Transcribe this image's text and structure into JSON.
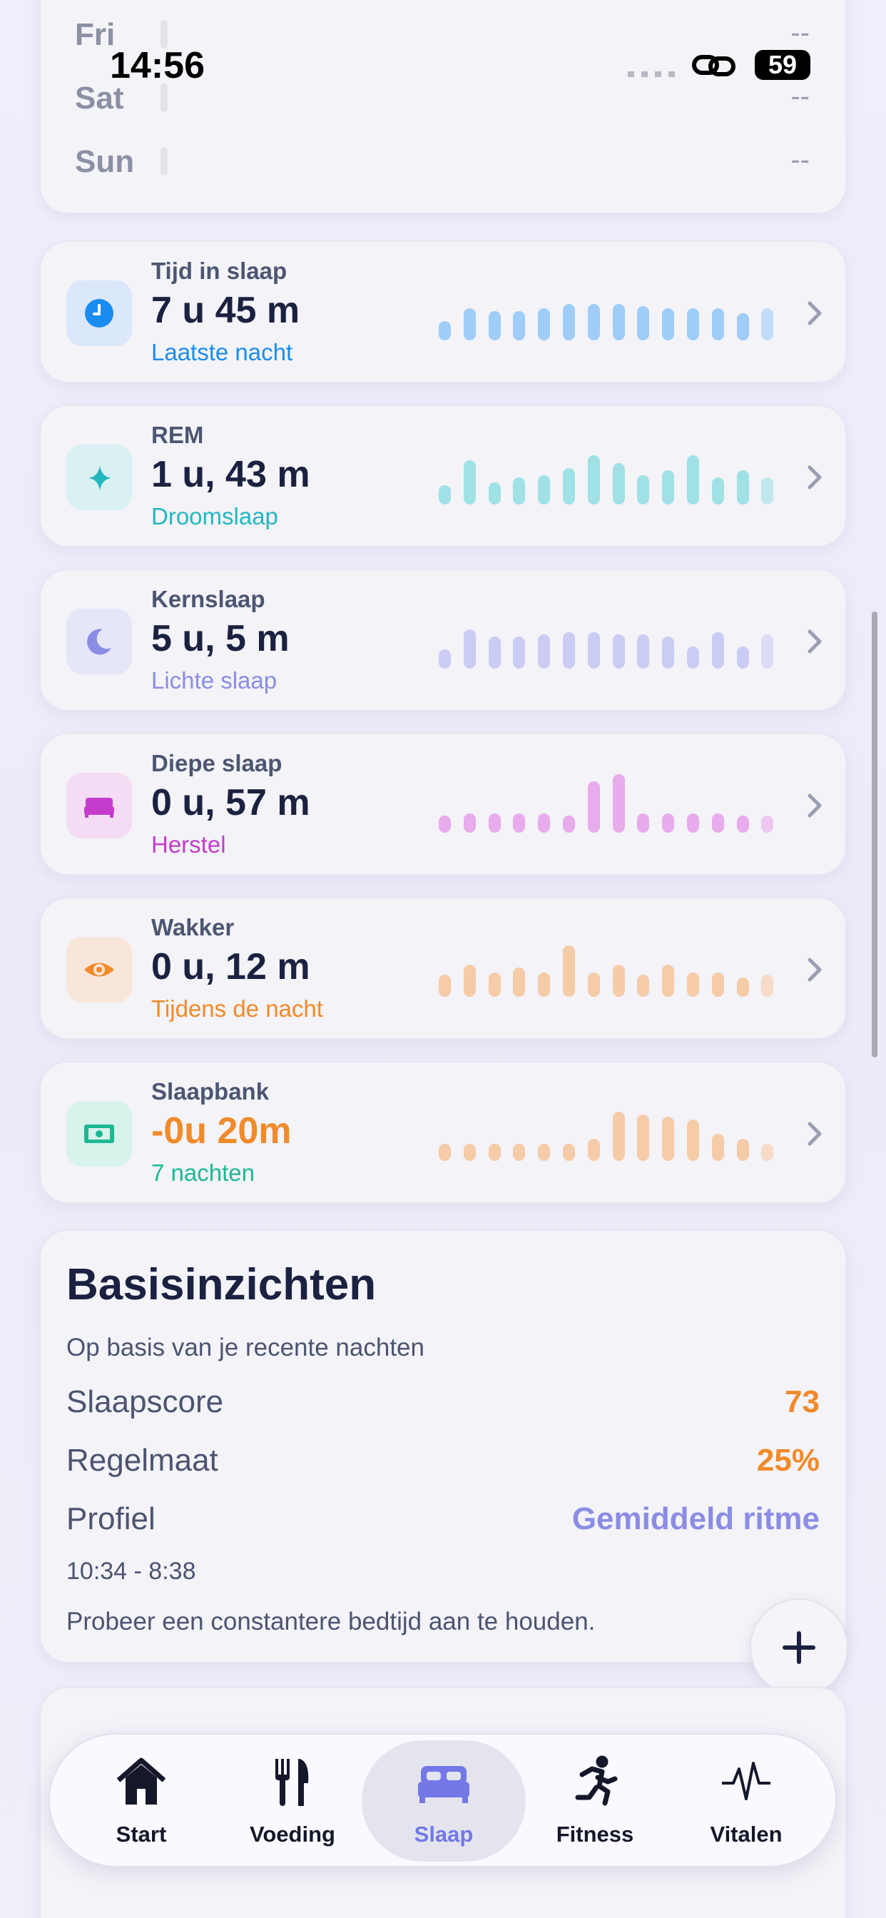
{
  "status_bar": {
    "time": "14:56",
    "battery": "59"
  },
  "week": [
    {
      "day": "Fri",
      "value": "--"
    },
    {
      "day": "Sat",
      "value": "--"
    },
    {
      "day": "Sun",
      "value": "--"
    }
  ],
  "metrics": [
    {
      "title": "Tijd in slaap",
      "value": "7 u 45 m",
      "subtitle": "Laatste nacht",
      "bars": [
        16,
        26,
        24,
        24,
        26,
        30,
        30,
        30,
        28,
        26,
        26,
        26,
        22,
        26
      ]
    },
    {
      "title": "REM",
      "value": "1 u, 43 m",
      "subtitle": "Droomslaap",
      "bars": [
        16,
        36,
        18,
        22,
        24,
        30,
        40,
        34,
        24,
        28,
        40,
        22,
        28,
        22
      ]
    },
    {
      "title": "Kernslaap",
      "value": "5 u, 5 m",
      "subtitle": "Lichte slaap",
      "bars": [
        16,
        32,
        26,
        26,
        28,
        30,
        30,
        28,
        28,
        26,
        18,
        30,
        18,
        28
      ]
    },
    {
      "title": "Diepe slaap",
      "value": "0 u, 57 m",
      "subtitle": "Herstel",
      "bars": [
        14,
        16,
        16,
        16,
        16,
        14,
        42,
        48,
        16,
        16,
        16,
        16,
        14,
        14
      ]
    },
    {
      "title": "Wakker",
      "value": "0 u, 12 m",
      "subtitle": "Tijdens de nacht",
      "bars": [
        18,
        26,
        20,
        24,
        20,
        42,
        20,
        26,
        18,
        26,
        20,
        20,
        16,
        18
      ]
    },
    {
      "title": "Slaapbank",
      "value": "-0u 20m",
      "subtitle": "7 nachten",
      "bars": [
        14,
        14,
        14,
        14,
        14,
        14,
        18,
        40,
        38,
        36,
        34,
        22,
        18,
        14
      ]
    }
  ],
  "insights": {
    "title": "Basisinzichten",
    "subtitle": "Op basis van je recente nachten",
    "rows": [
      {
        "label": "Slaapscore",
        "value": "73"
      },
      {
        "label": "Regelmaat",
        "value": "25%"
      },
      {
        "label": "Profiel",
        "value": "Gemiddeld ritme"
      }
    ],
    "time_range": "10:34 - 8:38",
    "tip": "Probeer een constantere bedtijd aan te houden."
  },
  "tab_bar": {
    "items": [
      "Start",
      "Voeding",
      "Slaap",
      "Fitness",
      "Vitalen"
    ],
    "selected": 2
  }
}
